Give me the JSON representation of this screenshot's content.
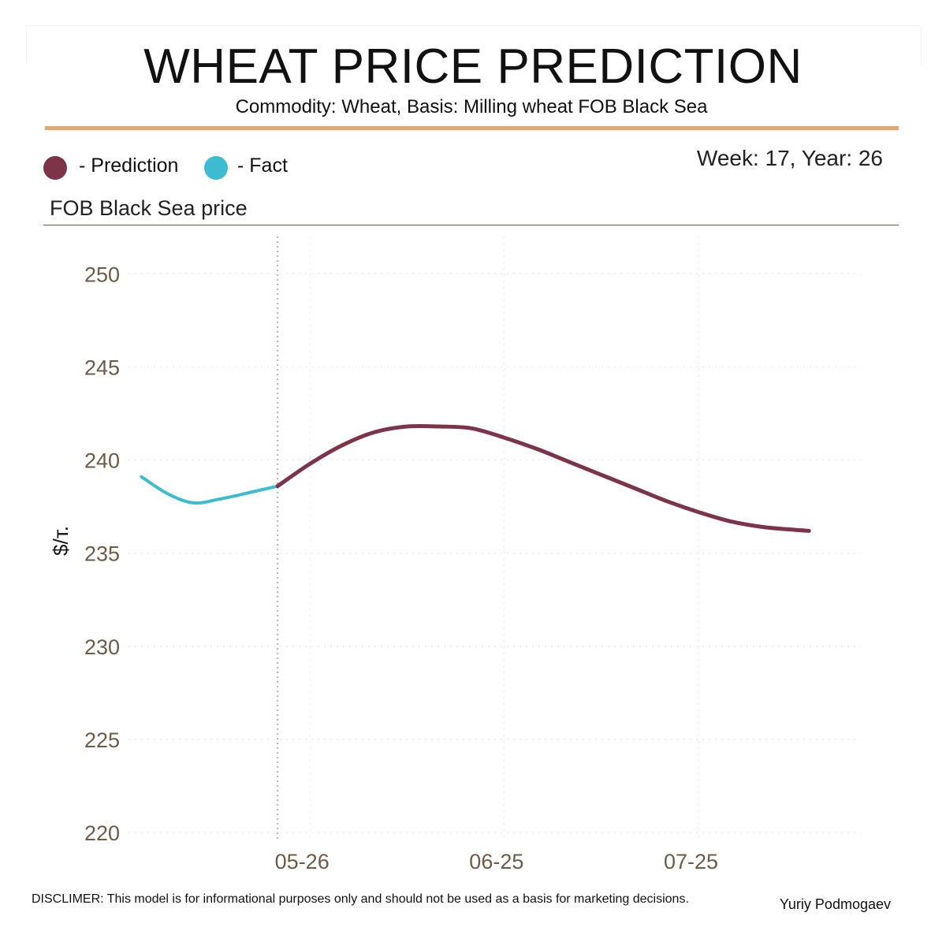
{
  "header": {
    "title": "WHEAT PRICE PREDICTION",
    "subtitle": "Commodity: Wheat, Basis: Milling wheat FOB Black Sea",
    "week_label": "Week: 17, Year: 26"
  },
  "legend": {
    "prediction_label": "- Prediction",
    "fact_label": "- Fact"
  },
  "footer": {
    "disclaimer": "DISCLIMER:  This model is for informational purposes only and should not be used as a basis for marketing decisions.",
    "author": "Yuriy Podmogaev"
  },
  "colors": {
    "prediction": "#7d3348",
    "fact": "#3dbbd1",
    "accent": "#e3a86f",
    "tick_text": "#6f5a48",
    "grid": "#e3e3e3",
    "divider": "#b5b5b5"
  },
  "chart_data": {
    "type": "line",
    "title": "FOB Black Sea price",
    "ylabel": "$/т.",
    "xlabel": "",
    "x_ticks": [
      "05-26",
      "06-25",
      "07-25"
    ],
    "x_tick_days": [
      0,
      30,
      60
    ],
    "y_ticks": [
      220,
      225,
      230,
      235,
      240,
      245,
      250
    ],
    "ylim": [
      219.5,
      252
    ],
    "xlim_days": [
      -28,
      85
    ],
    "forecast_start_day": -5,
    "grid": true,
    "legend_position": "top-left",
    "series": [
      {
        "name": "Fact",
        "color": "#3dbbd1",
        "x_days": [
          -26,
          -22,
          -18,
          -14,
          -10,
          -5
        ],
        "values": [
          239.1,
          238.2,
          237.7,
          237.9,
          238.2,
          238.6
        ]
      },
      {
        "name": "Prediction",
        "color": "#7d3348",
        "x_days": [
          -5,
          0,
          5,
          10,
          15,
          20,
          25,
          30,
          35,
          40,
          45,
          50,
          55,
          60,
          65,
          70,
          75,
          77
        ],
        "values": [
          238.6,
          239.8,
          240.8,
          241.5,
          241.8,
          241.8,
          241.7,
          241.2,
          240.6,
          239.9,
          239.2,
          238.5,
          237.8,
          237.2,
          236.7,
          236.4,
          236.25,
          236.2
        ]
      }
    ]
  }
}
